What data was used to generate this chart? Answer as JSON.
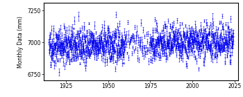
{
  "start_year": 1915,
  "end_year": 2024,
  "base_mean": 6970,
  "seasonal_amplitude": 40,
  "trend_per_year": 0.3,
  "noise_std": 65,
  "error_mean": 15,
  "error_std": 8,
  "error_min": 5,
  "gap_start": 1960,
  "gap_end": 1975,
  "color": "#0000ee",
  "ylabel": "Monthly Data (mm)",
  "xlim": [
    1912,
    2027
  ],
  "ylim": [
    6700,
    7310
  ],
  "yticks": [
    6750,
    7000,
    7250
  ],
  "xticks": [
    1925,
    1950,
    1975,
    2000,
    2025
  ],
  "figsize": [
    3.5,
    1.4
  ],
  "dpi": 100,
  "marker": "+",
  "markersize": 1.5,
  "capsize": 0.8,
  "elinewidth": 0.4,
  "markeredgewidth": 0.5
}
